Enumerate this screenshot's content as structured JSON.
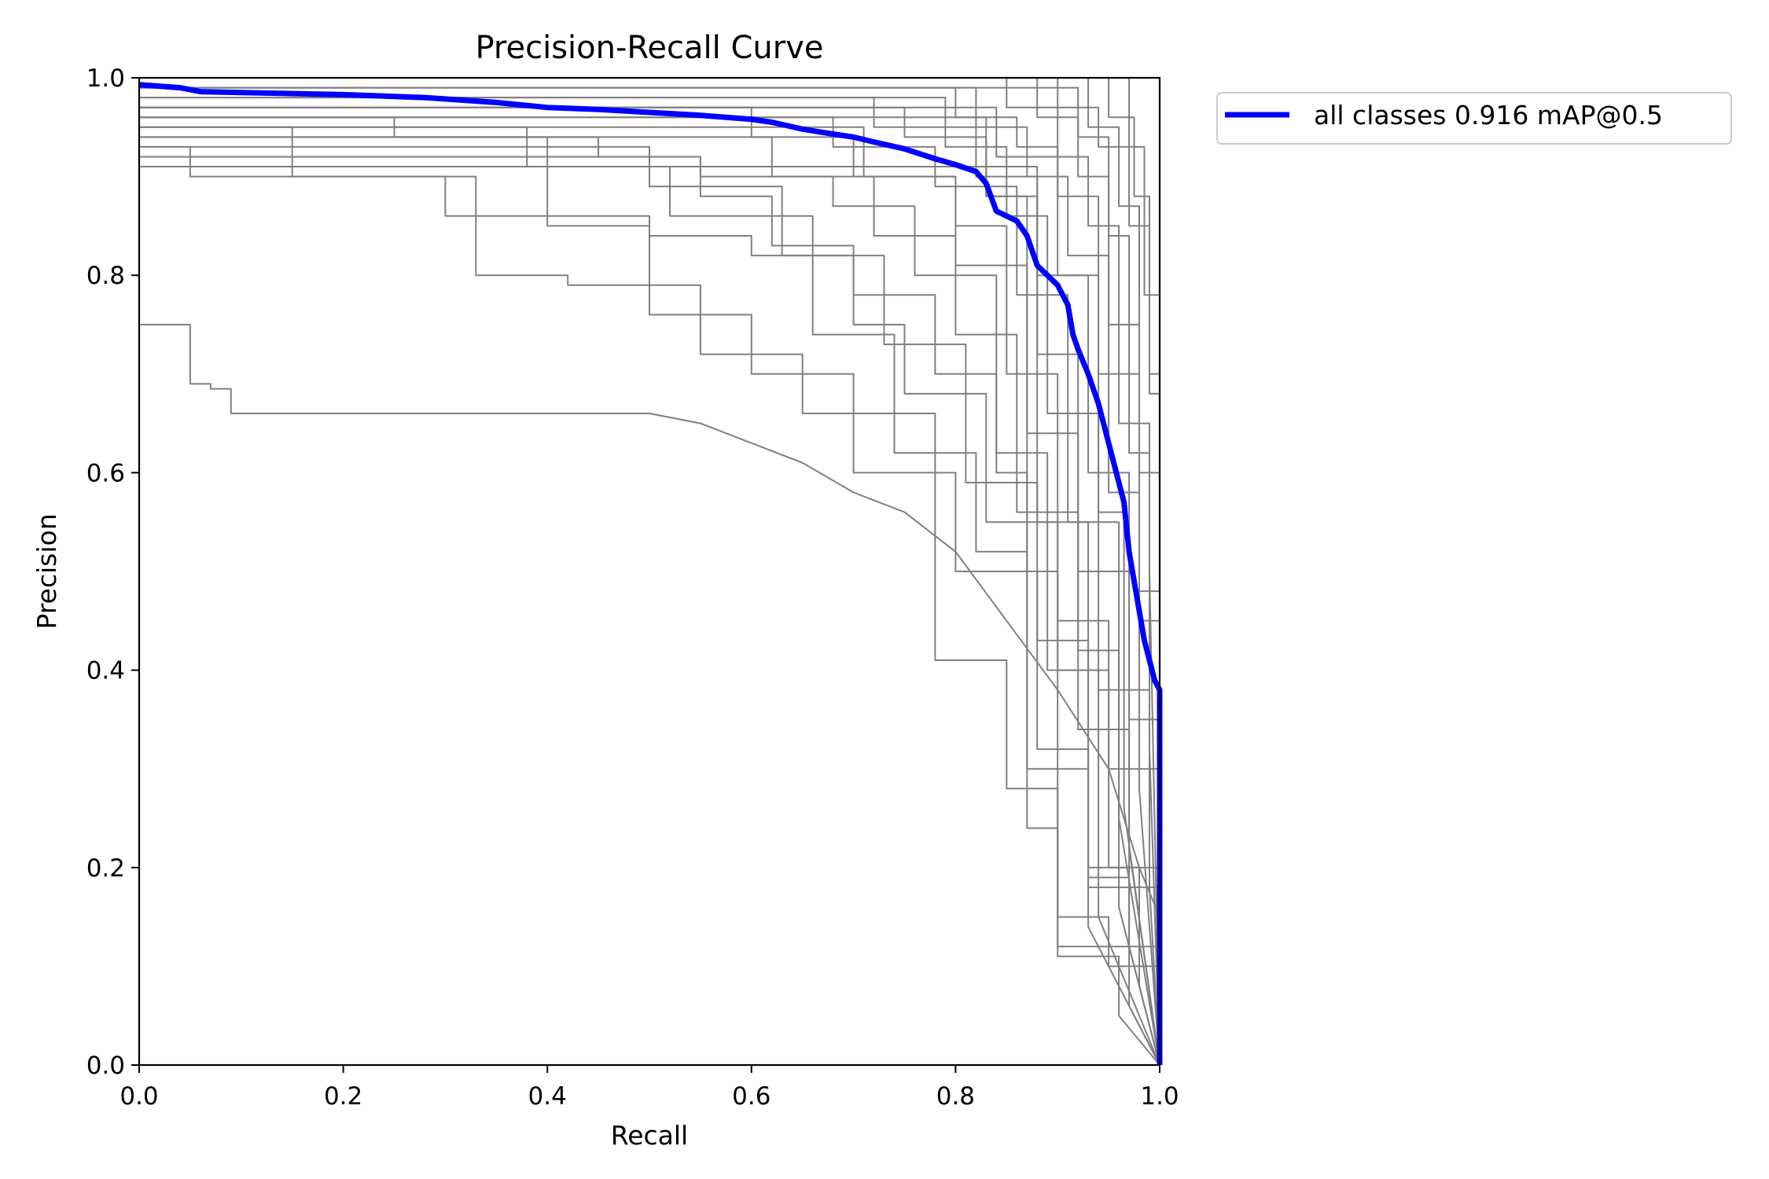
{
  "chart_data": {
    "type": "line",
    "title": "Precision-Recall Curve",
    "xlabel": "Recall",
    "ylabel": "Precision",
    "xlim": [
      0,
      1
    ],
    "ylim": [
      0,
      1
    ],
    "xticks": [
      "0.0",
      "0.2",
      "0.4",
      "0.6",
      "0.8",
      "1.0"
    ],
    "yticks": [
      "0.0",
      "0.2",
      "0.4",
      "0.6",
      "0.8",
      "1.0"
    ],
    "grid": false,
    "legend": {
      "placement": "outside-top-right"
    },
    "colors": {
      "per_class": "#808080",
      "all_classes": "#0000ff"
    },
    "series": [
      {
        "name": "all classes 0.916 mAP@0.5",
        "color": "#0000ff",
        "x": [
          0,
          0.04,
          0.06,
          0.1,
          0.2,
          0.28,
          0.35,
          0.4,
          0.45,
          0.5,
          0.55,
          0.6,
          0.62,
          0.65,
          0.68,
          0.7,
          0.72,
          0.75,
          0.78,
          0.8,
          0.82,
          0.83,
          0.84,
          0.86,
          0.87,
          0.88,
          0.89,
          0.9,
          0.91,
          0.915,
          0.92,
          0.93,
          0.94,
          0.95,
          0.96,
          0.965,
          0.97,
          0.975,
          0.98,
          0.985,
          0.99,
          0.995,
          1.0,
          1.0
        ],
        "y": [
          0.993,
          0.99,
          0.986,
          0.985,
          0.983,
          0.98,
          0.975,
          0.97,
          0.968,
          0.965,
          0.962,
          0.958,
          0.955,
          0.948,
          0.943,
          0.94,
          0.935,
          0.928,
          0.918,
          0.912,
          0.905,
          0.893,
          0.865,
          0.855,
          0.84,
          0.81,
          0.8,
          0.79,
          0.77,
          0.74,
          0.725,
          0.7,
          0.67,
          0.63,
          0.59,
          0.57,
          0.52,
          0.49,
          0.46,
          0.43,
          0.41,
          0.39,
          0.38,
          0.0
        ]
      },
      {
        "color": "#808080",
        "x": [
          0,
          0.05,
          0.05,
          0.07,
          0.07,
          0.09,
          0.09,
          0.5,
          0.55,
          0.6,
          0.65,
          0.7,
          0.75,
          0.8,
          0.85,
          0.9,
          0.95,
          0.98,
          1.0,
          1.0
        ],
        "y": [
          0.75,
          0.75,
          0.69,
          0.69,
          0.685,
          0.685,
          0.66,
          0.66,
          0.65,
          0.63,
          0.61,
          0.58,
          0.56,
          0.52,
          0.45,
          0.38,
          0.3,
          0.2,
          0.15,
          0.0
        ]
      },
      {
        "color": "#808080",
        "x": [
          0,
          0.05,
          0.05,
          0.3,
          0.3,
          0.5,
          0.5,
          0.6,
          0.6,
          0.7,
          0.7,
          0.78,
          0.78,
          0.84,
          0.84,
          0.87,
          0.87,
          0.9,
          0.9,
          0.95,
          0.95,
          1.0,
          1.0
        ],
        "y": [
          0.93,
          0.93,
          0.9,
          0.9,
          0.86,
          0.86,
          0.84,
          0.84,
          0.82,
          0.82,
          0.78,
          0.78,
          0.7,
          0.7,
          0.6,
          0.6,
          0.5,
          0.5,
          0.4,
          0.4,
          0.3,
          0.3,
          0.0
        ]
      },
      {
        "color": "#808080",
        "x": [
          0,
          0.15,
          0.15,
          0.33,
          0.33,
          0.42,
          0.42,
          0.55,
          0.55,
          0.65,
          0.65,
          0.78,
          0.78,
          0.85,
          0.85,
          0.9,
          0.9,
          0.95,
          0.95,
          1.0,
          1.0
        ],
        "y": [
          0.95,
          0.95,
          0.9,
          0.9,
          0.8,
          0.8,
          0.79,
          0.79,
          0.72,
          0.72,
          0.66,
          0.66,
          0.41,
          0.41,
          0.28,
          0.28,
          0.15,
          0.15,
          0.1,
          0.1,
          0.0
        ]
      },
      {
        "color": "#808080",
        "x": [
          0,
          0.25,
          0.25,
          0.4,
          0.4,
          0.5,
          0.5,
          0.6,
          0.6,
          0.7,
          0.7,
          0.8,
          0.8,
          0.88,
          0.88,
          0.93,
          0.93,
          1.0,
          1.0
        ],
        "y": [
          0.96,
          0.96,
          0.94,
          0.94,
          0.85,
          0.85,
          0.76,
          0.76,
          0.7,
          0.7,
          0.6,
          0.6,
          0.5,
          0.5,
          0.32,
          0.32,
          0.18,
          0.18,
          0.0
        ]
      },
      {
        "color": "#808080",
        "x": [
          0,
          0.45,
          0.45,
          0.55,
          0.55,
          0.62,
          0.62,
          0.7,
          0.7,
          0.75,
          0.75,
          0.83,
          0.83,
          0.9,
          0.9,
          1.0,
          1.0
        ],
        "y": [
          0.94,
          0.94,
          0.92,
          0.92,
          0.88,
          0.88,
          0.83,
          0.83,
          0.75,
          0.75,
          0.68,
          0.68,
          0.55,
          0.55,
          0.12,
          0.12,
          0.0
        ]
      },
      {
        "color": "#808080",
        "x": [
          0,
          0.6,
          0.6,
          0.7,
          0.7,
          0.8,
          0.8,
          0.85,
          0.85,
          0.9,
          0.9,
          0.95,
          0.95,
          1.0,
          1.0
        ],
        "y": [
          0.97,
          0.97,
          0.94,
          0.94,
          0.9,
          0.9,
          0.85,
          0.85,
          0.7,
          0.7,
          0.45,
          0.45,
          0.2,
          0.2,
          0.0
        ]
      },
      {
        "color": "#808080",
        "x": [
          0,
          0.72,
          0.72,
          0.82,
          0.82,
          0.88,
          0.88,
          0.93,
          0.93,
          0.97,
          0.97,
          1.0,
          1.0
        ],
        "y": [
          0.98,
          0.98,
          0.95,
          0.95,
          0.9,
          0.9,
          0.8,
          0.8,
          0.6,
          0.6,
          0.35,
          0.35,
          0.0
        ]
      },
      {
        "color": "#808080",
        "x": [
          0,
          0.8,
          0.8,
          0.86,
          0.86,
          0.9,
          0.9,
          0.94,
          0.94,
          0.98,
          0.98,
          1.0,
          1.0
        ],
        "y": [
          0.99,
          0.99,
          0.96,
          0.96,
          0.93,
          0.93,
          0.88,
          0.88,
          0.7,
          0.7,
          0.45,
          0.45,
          0.0
        ]
      },
      {
        "color": "#808080",
        "x": [
          0,
          0.85,
          0.85,
          0.9,
          0.9,
          0.93,
          0.93,
          0.96,
          0.96,
          0.99,
          0.99,
          1.0
        ],
        "y": [
          1.0,
          1.0,
          0.97,
          0.97,
          0.92,
          0.92,
          0.85,
          0.85,
          0.65,
          0.65,
          0.5,
          0.0
        ]
      },
      {
        "color": "#808080",
        "x": [
          0,
          0.9,
          0.9,
          0.94,
          0.94,
          0.97,
          0.97,
          0.99,
          0.99,
          1.0,
          1.0
        ],
        "y": [
          1.0,
          1.0,
          0.97,
          0.97,
          0.93,
          0.93,
          0.85,
          0.85,
          0.7,
          0.7,
          0.0
        ]
      },
      {
        "color": "#808080",
        "x": [
          0,
          0.55,
          0.55,
          0.68,
          0.68,
          0.76,
          0.76,
          0.84,
          0.84,
          0.89,
          0.89,
          0.94,
          0.94,
          1.0
        ],
        "y": [
          0.92,
          0.92,
          0.9,
          0.9,
          0.87,
          0.87,
          0.8,
          0.8,
          0.62,
          0.62,
          0.4,
          0.4,
          0.15,
          0.0
        ]
      },
      {
        "color": "#808080",
        "x": [
          0,
          0.38,
          0.38,
          0.52,
          0.52,
          0.66,
          0.66,
          0.74,
          0.74,
          0.82,
          0.82,
          0.87,
          0.87,
          0.93,
          0.93,
          1.0
        ],
        "y": [
          0.95,
          0.95,
          0.91,
          0.91,
          0.86,
          0.86,
          0.74,
          0.74,
          0.62,
          0.62,
          0.52,
          0.52,
          0.3,
          0.3,
          0.14,
          0.0
        ]
      },
      {
        "color": "#808080",
        "x": [
          0,
          0.68,
          0.68,
          0.78,
          0.78,
          0.86,
          0.86,
          0.91,
          0.91,
          0.96,
          0.96,
          1.0
        ],
        "y": [
          0.96,
          0.96,
          0.93,
          0.93,
          0.89,
          0.89,
          0.78,
          0.78,
          0.55,
          0.55,
          0.25,
          0.0
        ]
      },
      {
        "color": "#808080",
        "x": [
          0,
          0.75,
          0.75,
          0.83,
          0.83,
          0.88,
          0.88,
          0.92,
          0.92,
          0.97,
          0.97,
          1.0
        ],
        "y": [
          0.97,
          0.97,
          0.94,
          0.94,
          0.88,
          0.88,
          0.72,
          0.72,
          0.5,
          0.5,
          0.22,
          0.0
        ]
      },
      {
        "color": "#808080",
        "x": [
          0,
          0.82,
          0.82,
          0.87,
          0.87,
          0.91,
          0.91,
          0.95,
          0.95,
          0.98,
          0.98,
          1.0
        ],
        "y": [
          0.99,
          0.99,
          0.95,
          0.95,
          0.9,
          0.9,
          0.82,
          0.82,
          0.58,
          0.58,
          0.28,
          0.0
        ]
      },
      {
        "color": "#808080",
        "x": [
          0,
          0.88,
          0.88,
          0.92,
          0.92,
          0.95,
          0.95,
          0.98,
          0.98,
          1.0,
          1.0
        ],
        "y": [
          1.0,
          1.0,
          0.96,
          0.96,
          0.9,
          0.9,
          0.75,
          0.75,
          0.48,
          0.48,
          0.0
        ]
      },
      {
        "color": "#808080",
        "x": [
          0,
          0.93,
          0.93,
          0.96,
          0.96,
          0.98,
          0.98,
          1.0,
          1.0
        ],
        "y": [
          1.0,
          1.0,
          0.95,
          0.95,
          0.87,
          0.87,
          0.6,
          0.6,
          0.0
        ]
      },
      {
        "color": "#808080",
        "x": [
          0,
          0.62,
          0.62,
          0.72,
          0.72,
          0.8,
          0.8,
          0.86,
          0.86,
          0.92,
          0.92,
          0.97,
          0.97,
          1.0
        ],
        "y": [
          0.94,
          0.94,
          0.9,
          0.9,
          0.84,
          0.84,
          0.74,
          0.74,
          0.56,
          0.56,
          0.34,
          0.34,
          0.12,
          0.0
        ]
      },
      {
        "color": "#808080",
        "x": [
          0,
          0.5,
          0.5,
          0.63,
          0.63,
          0.73,
          0.73,
          0.81,
          0.81,
          0.88,
          0.88,
          0.93,
          0.93,
          0.98,
          0.98,
          1.0
        ],
        "y": [
          0.93,
          0.93,
          0.89,
          0.89,
          0.82,
          0.82,
          0.73,
          0.73,
          0.59,
          0.59,
          0.43,
          0.43,
          0.2,
          0.2,
          0.08,
          0.0
        ]
      },
      {
        "color": "#808080",
        "x": [
          0,
          0.79,
          0.79,
          0.85,
          0.85,
          0.89,
          0.89,
          0.94,
          0.94,
          0.99,
          0.99,
          1.0
        ],
        "y": [
          0.98,
          0.98,
          0.93,
          0.93,
          0.86,
          0.86,
          0.66,
          0.66,
          0.38,
          0.38,
          0.18,
          0.0
        ]
      },
      {
        "color": "#808080",
        "x": [
          0,
          0.92,
          0.92,
          0.95,
          0.95,
          0.97,
          0.97,
          0.99,
          0.99,
          1.0
        ],
        "y": [
          0.99,
          0.99,
          0.94,
          0.94,
          0.84,
          0.84,
          0.62,
          0.62,
          0.32,
          0.0
        ]
      },
      {
        "color": "#808080",
        "x": [
          0,
          0.95,
          0.95,
          0.975,
          0.975,
          0.99,
          0.99,
          1.0,
          1.0
        ],
        "y": [
          1.0,
          1.0,
          0.96,
          0.96,
          0.88,
          0.88,
          0.68,
          0.68,
          0.0
        ]
      },
      {
        "color": "#808080",
        "x": [
          0,
          0.84,
          0.84,
          0.9,
          0.9,
          0.94,
          0.94,
          0.965,
          0.965,
          1.0
        ],
        "y": [
          0.97,
          0.97,
          0.92,
          0.92,
          0.8,
          0.8,
          0.56,
          0.56,
          0.26,
          0.0
        ]
      },
      {
        "color": "#808080",
        "x": [
          0,
          0.71,
          0.71,
          0.8,
          0.8,
          0.87,
          0.87,
          0.92,
          0.92,
          0.96,
          0.96,
          1.0
        ],
        "y": [
          0.95,
          0.95,
          0.9,
          0.9,
          0.81,
          0.81,
          0.64,
          0.64,
          0.42,
          0.42,
          0.16,
          0.0
        ]
      },
      {
        "color": "#808080",
        "x": [
          0,
          0.88,
          0.88,
          0.93,
          0.93,
          0.97,
          0.97,
          1.0
        ],
        "y": [
          0.91,
          0.91,
          0.55,
          0.55,
          0.19,
          0.19,
          0.06,
          0.0
        ]
      },
      {
        "color": "#808080",
        "x": [
          0,
          0.83,
          0.83,
          0.87,
          0.87,
          0.9,
          0.9,
          0.96,
          0.96,
          1.0
        ],
        "y": [
          0.96,
          0.96,
          0.88,
          0.88,
          0.24,
          0.24,
          0.11,
          0.11,
          0.05,
          0.0
        ]
      },
      {
        "color": "#808080",
        "x": [
          0,
          0.97,
          0.97,
          0.985,
          0.985,
          1.0,
          1.0
        ],
        "y": [
          1.0,
          1.0,
          0.93,
          0.93,
          0.78,
          0.78,
          0.0
        ]
      }
    ]
  }
}
